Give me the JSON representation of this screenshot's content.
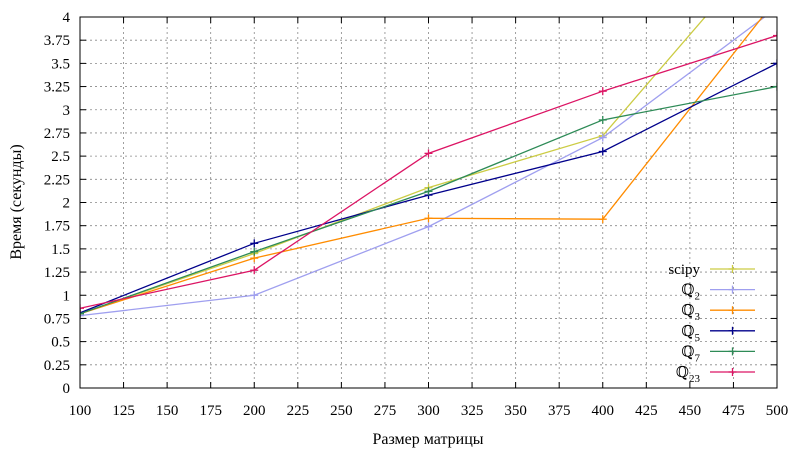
{
  "chart_data": {
    "type": "line",
    "xlabel": "Размер матрицы",
    "ylabel": "Время (секунды)",
    "xlim": [
      100,
      500
    ],
    "ylim": [
      0,
      4
    ],
    "xticks": [
      100,
      125,
      150,
      175,
      200,
      225,
      250,
      275,
      300,
      325,
      350,
      375,
      400,
      425,
      450,
      475,
      500
    ],
    "xtick_labels": [
      "100",
      "125",
      "150",
      "175",
      "200",
      "225",
      "250",
      "275",
      "300",
      "325",
      "350",
      "375",
      "400",
      "425",
      "450",
      "475",
      "500"
    ],
    "yticks": [
      0,
      0.25,
      0.5,
      0.75,
      1,
      1.25,
      1.5,
      1.75,
      2,
      2.25,
      2.5,
      2.75,
      3,
      3.25,
      3.5,
      3.75,
      4
    ],
    "ytick_labels": [
      "0",
      "0.25",
      "0.5",
      "0.75",
      "1",
      "1.25",
      "1.5",
      "1.75",
      "2",
      "2.25",
      "2.5",
      "2.75",
      "3",
      "3.25",
      "3.5",
      "3.75",
      "4"
    ],
    "grid": true,
    "legend_position": "bottom-right",
    "x": [
      100,
      200,
      300,
      400,
      500
    ],
    "series": [
      {
        "name": "scipy",
        "color": "#cccc44",
        "values": [
          0.8,
          1.45,
          2.16,
          2.72,
          4.9
        ]
      },
      {
        "name": "ℚ",
        "subscript": "2",
        "color": "#9f9fef",
        "values": [
          0.78,
          1.0,
          1.74,
          2.7,
          4.1
        ]
      },
      {
        "name": "ℚ",
        "subscript": "3",
        "color": "#ff8c00",
        "values": [
          0.8,
          1.4,
          1.83,
          1.82,
          4.2
        ]
      },
      {
        "name": "ℚ",
        "subscript": "5",
        "color": "#00008b",
        "values": [
          0.81,
          1.56,
          2.08,
          2.55,
          3.5
        ]
      },
      {
        "name": "ℚ",
        "subscript": "7",
        "color": "#2e8b57",
        "values": [
          0.8,
          1.47,
          2.12,
          2.89,
          3.25
        ]
      },
      {
        "name": "ℚ",
        "subscript": "23",
        "color": "#dc1464",
        "values": [
          0.86,
          1.27,
          2.53,
          3.2,
          3.8
        ]
      }
    ]
  }
}
